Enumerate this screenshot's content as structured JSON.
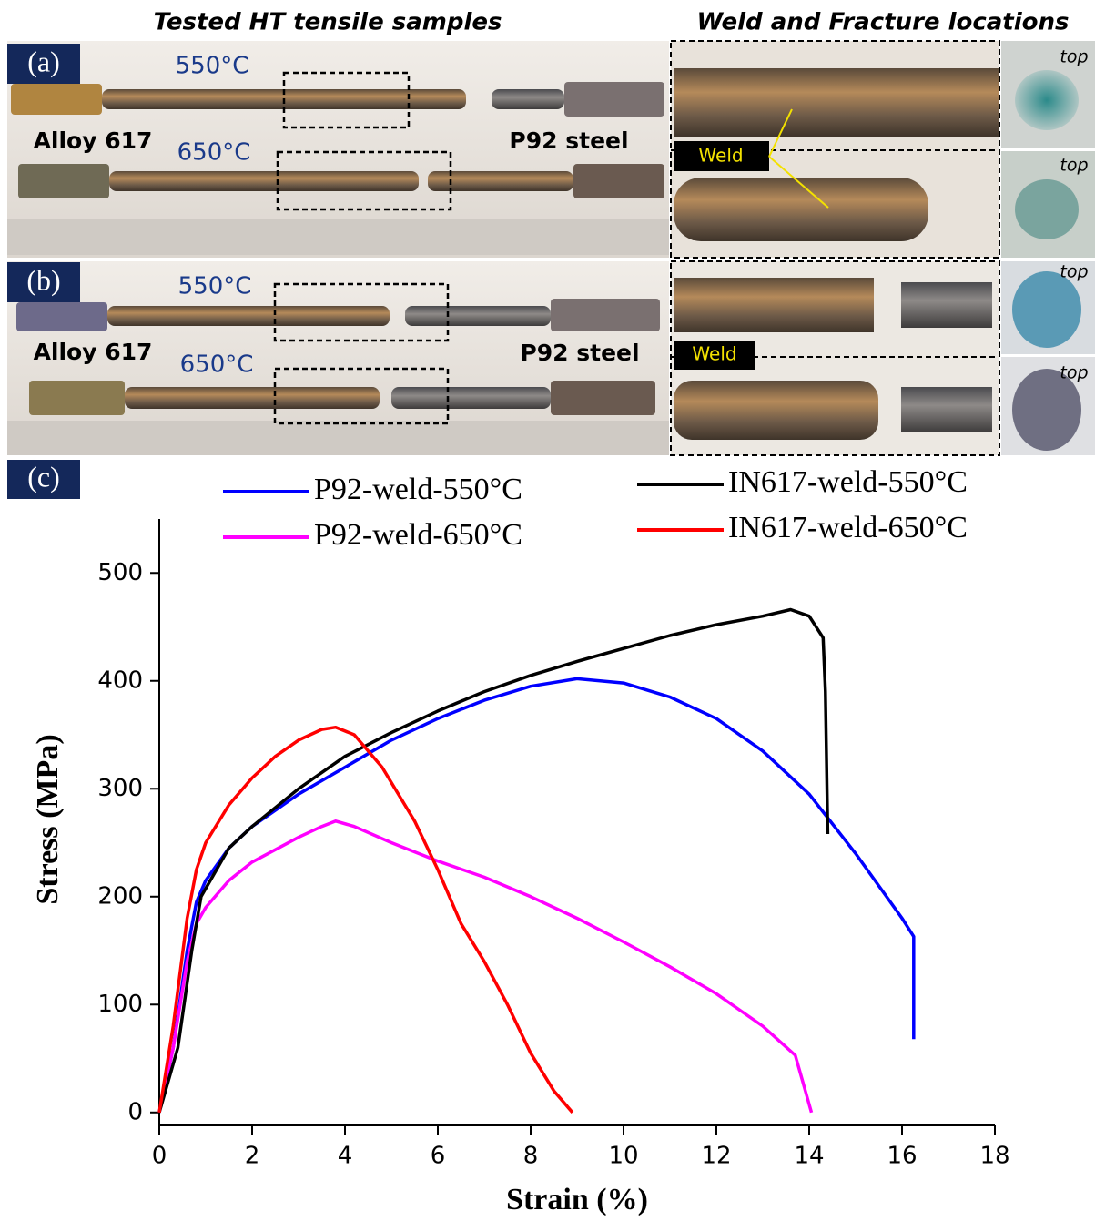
{
  "figure": {
    "left_heading": "Tested HT tensile samples",
    "right_heading": "Weld and Fracture locations",
    "panel_a": {
      "label": "(a)",
      "temp_top": "550°C",
      "temp_bottom": "650°C",
      "left_material": "Alloy 617",
      "right_material": "P92 steel",
      "weld": "Weld",
      "top_1": "top",
      "top_2": "top"
    },
    "panel_b": {
      "label": "(b)",
      "temp_top": "550°C",
      "temp_bottom": "650°C",
      "left_material": "Alloy 617",
      "right_material": "P92 steel",
      "weld": "Weld",
      "top_1": "top",
      "top_2": "top"
    },
    "panel_c": {
      "label": "(c)"
    }
  },
  "chart_data": {
    "type": "line",
    "x_label": "Strain (%)",
    "y_label": "Stress (MPa)",
    "xlim": [
      0,
      18
    ],
    "ylim": [
      -12,
      550
    ],
    "xticks": [
      0,
      2,
      4,
      6,
      8,
      10,
      12,
      14,
      16,
      18
    ],
    "yticks": [
      0,
      100,
      200,
      300,
      400,
      500
    ],
    "series": [
      {
        "name": "P92-weld-550°C",
        "color": "#0000ff",
        "x": [
          0,
          0.3,
          0.6,
          0.8,
          1,
          1.5,
          2,
          3,
          4,
          5,
          6,
          7,
          8,
          9,
          10,
          11,
          12,
          13,
          14,
          15,
          16,
          16.25,
          16.25
        ],
        "values": [
          0,
          60,
          150,
          195,
          215,
          245,
          265,
          295,
          320,
          345,
          365,
          382,
          395,
          402,
          398,
          385,
          365,
          335,
          295,
          240,
          180,
          163,
          68
        ]
      },
      {
        "name": "P92-weld-650°C",
        "color": "#ff00ff",
        "x": [
          0,
          0.3,
          0.6,
          0.8,
          1,
          1.5,
          2,
          3,
          3.5,
          3.8,
          4.2,
          5,
          6,
          7,
          8,
          9,
          10,
          11,
          12,
          13,
          13.7,
          14.05
        ],
        "values": [
          0,
          60,
          140,
          175,
          190,
          215,
          232,
          255,
          265,
          270,
          265,
          250,
          233,
          218,
          200,
          180,
          158,
          135,
          110,
          80,
          53,
          0
        ]
      },
      {
        "name": "IN617-weld-550°C",
        "color": "#000000",
        "x": [
          0,
          0.4,
          0.7,
          0.9,
          1.5,
          2,
          3,
          4,
          5,
          6,
          7,
          8,
          9,
          10,
          11,
          12,
          13,
          13.6,
          14,
          14.3,
          14.35,
          14.4
        ],
        "values": [
          0,
          60,
          150,
          200,
          245,
          265,
          300,
          330,
          352,
          372,
          390,
          405,
          418,
          430,
          442,
          452,
          460,
          466,
          460,
          440,
          390,
          258
        ]
      },
      {
        "name": "IN617-weld-650°C",
        "color": "#ff0000",
        "x": [
          0,
          0.3,
          0.6,
          0.8,
          1,
          1.5,
          2,
          2.5,
          3,
          3.5,
          3.8,
          4.2,
          4.8,
          5.5,
          6,
          6.5,
          7,
          7.5,
          8,
          8.5,
          8.9
        ],
        "values": [
          0,
          80,
          180,
          225,
          250,
          285,
          310,
          330,
          345,
          355,
          357,
          350,
          320,
          270,
          225,
          175,
          140,
          100,
          55,
          20,
          0
        ]
      }
    ]
  }
}
